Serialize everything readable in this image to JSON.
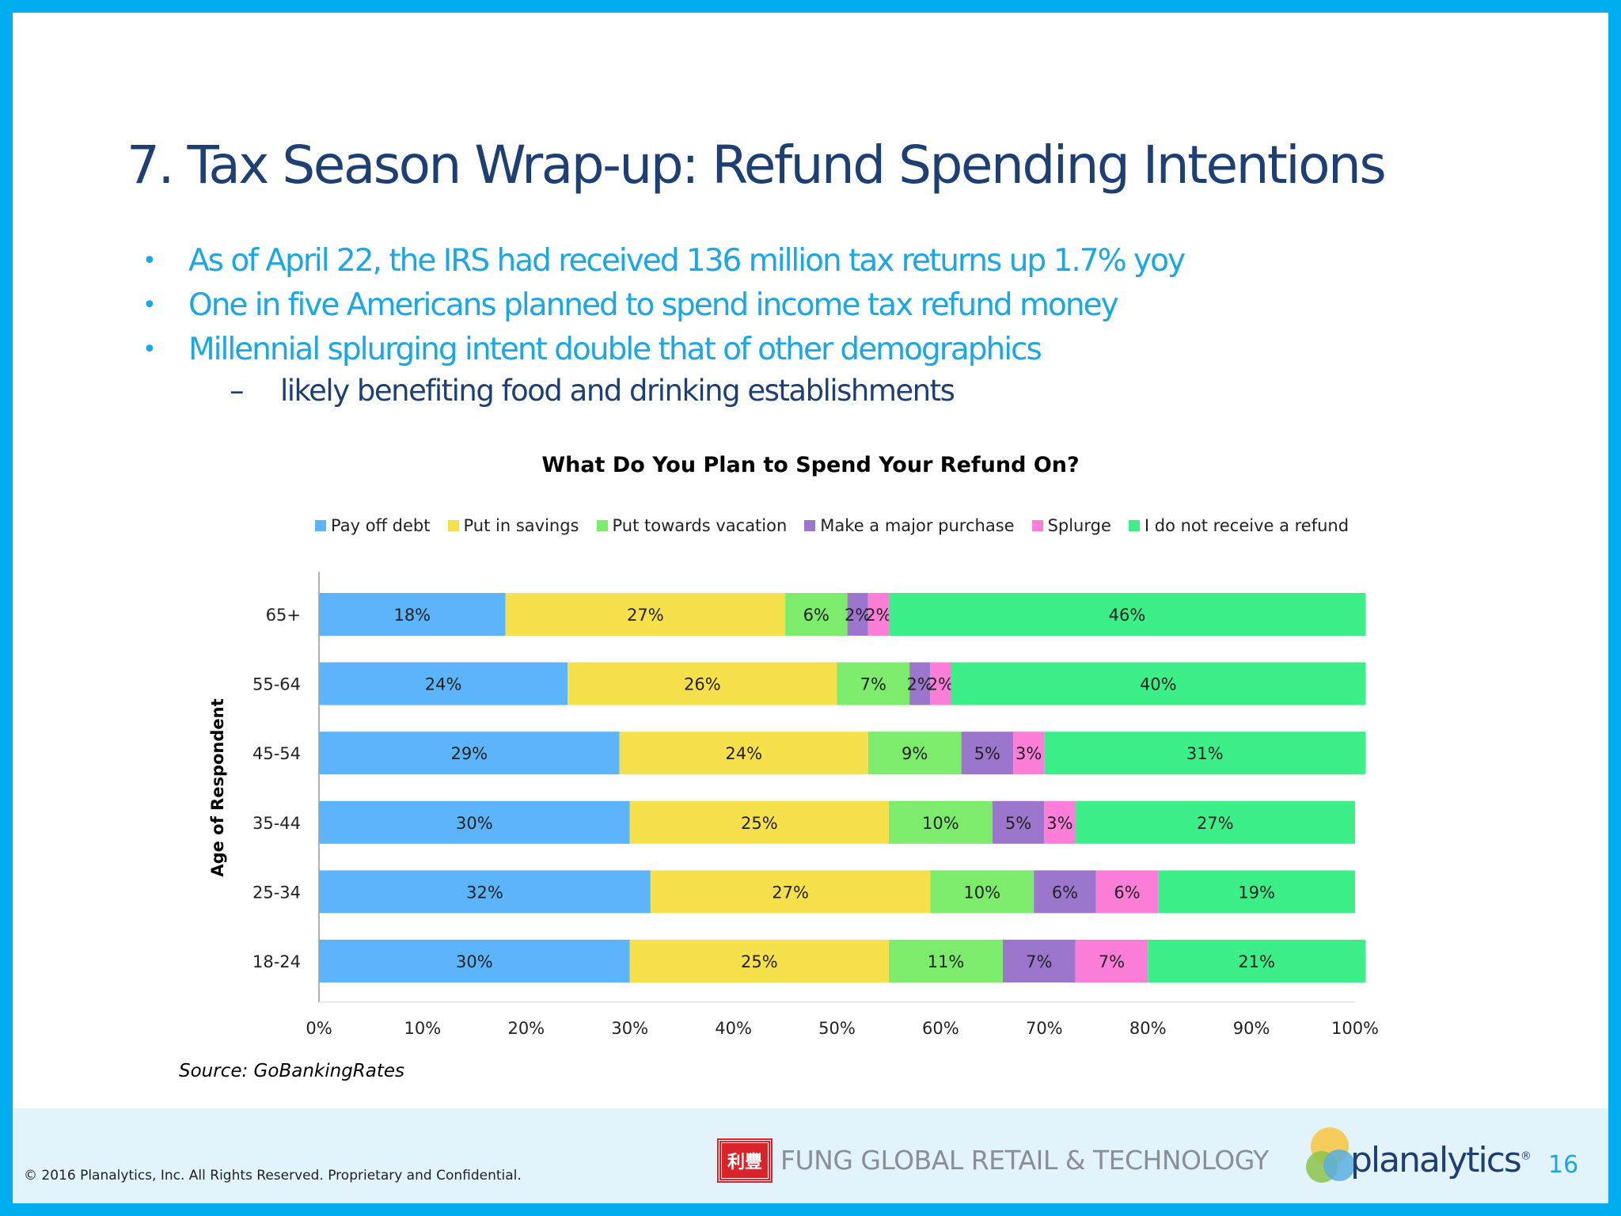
{
  "slide": {
    "title": "7. Tax Season Wrap-up: Refund Spending Intentions",
    "bullets": [
      "As of April 22, the IRS had received 136 million tax returns up 1.7% yoy",
      "One in five Americans planned to spend income tax refund money",
      "Millennial splurging intent double that of other demographics"
    ],
    "bullet_symbol": "•",
    "sub_bullet": {
      "dash": "–",
      "text": "likely benefiting food and drinking establishments"
    },
    "source": "Source: GoBankingRates",
    "copyright": "© 2016 Planalytics, Inc. All Rights Reserved. Proprietary and Confidential.",
    "page_number": "16",
    "logos": {
      "fung_mark": "利豐",
      "fung_text": "FUNG GLOBAL RETAIL & TECHNOLOGY",
      "planalytics_text": "planalytics",
      "planalytics_tm": "®"
    }
  },
  "chart_data": {
    "type": "bar",
    "orientation": "horizontal",
    "stacked": true,
    "title": "What Do You Plan to Spend Your Refund On?",
    "ylabel": "Age of Respondent",
    "xlabel": "",
    "xlim": [
      0,
      100
    ],
    "x_ticks": [
      "0%",
      "10%",
      "20%",
      "30%",
      "40%",
      "50%",
      "60%",
      "70%",
      "80%",
      "90%",
      "100%"
    ],
    "legend_position": "top",
    "categories": [
      "65+",
      "55-64",
      "45-54",
      "35-44",
      "25-34",
      "18-24"
    ],
    "series": [
      {
        "name": "Pay off debt",
        "color": "#5cb4fa",
        "values": [
          18,
          24,
          29,
          30,
          32,
          30
        ],
        "labels": [
          "18%",
          "24%",
          "29%",
          "30%",
          "32%",
          "30%"
        ]
      },
      {
        "name": "Put in savings",
        "color": "#f6e04c",
        "values": [
          27,
          26,
          24,
          25,
          27,
          25
        ],
        "labels": [
          "27%",
          "26%",
          "24%",
          "25%",
          "27%",
          "25%"
        ]
      },
      {
        "name": "Put towards vacation",
        "color": "#7deb6c",
        "values": [
          6,
          7,
          9,
          10,
          10,
          11
        ],
        "labels": [
          "6%",
          "7%",
          "9%",
          "10%",
          "10%",
          "11%"
        ]
      },
      {
        "name": "Make a major purchase",
        "color": "#9b76cc",
        "values": [
          2,
          2,
          5,
          5,
          6,
          7
        ],
        "labels": [
          "2%",
          "2%",
          "5%",
          "5%",
          "6%",
          "7%"
        ]
      },
      {
        "name": "Splurge",
        "color": "#fc7ed9",
        "values": [
          2,
          2,
          3,
          3,
          6,
          7
        ],
        "labels": [
          "2%",
          "2%",
          "3%",
          "3%",
          "6%",
          "7%"
        ]
      },
      {
        "name": "I do not receive a refund",
        "color": "#3def88",
        "values": [
          46,
          40,
          31,
          27,
          19,
          21
        ],
        "labels": [
          "46%",
          "40%",
          "31%",
          "27%",
          "19%",
          "21%"
        ]
      }
    ]
  }
}
